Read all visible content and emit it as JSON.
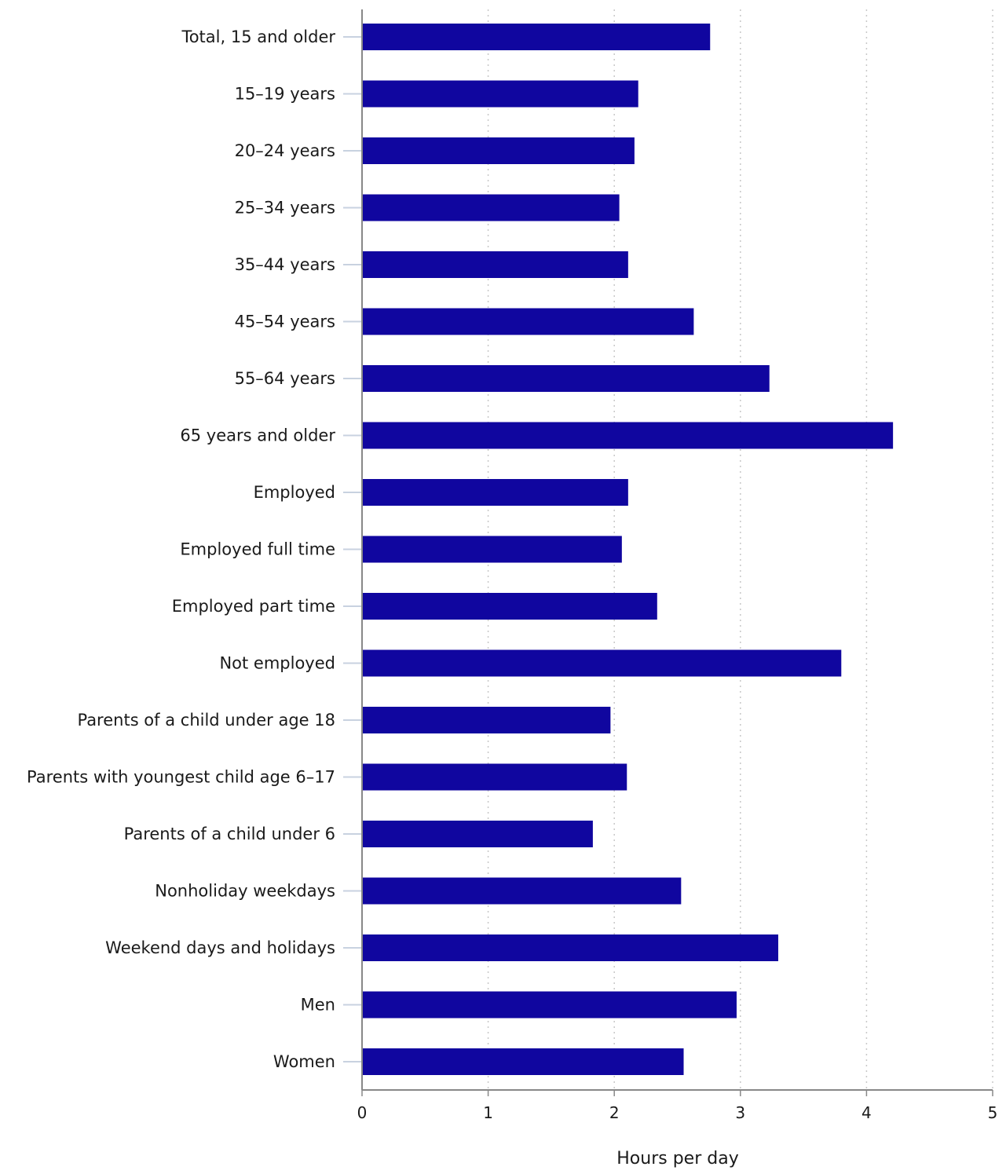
{
  "chart_data": {
    "type": "bar",
    "orientation": "horizontal",
    "categories": [
      "Total, 15 and older",
      "15–19 years",
      "20–24 years",
      "25–34 years",
      "35–44 years",
      "45–54 years",
      "55–64 years",
      "65 years and older",
      "Employed",
      "Employed full time",
      "Employed part time",
      "Not employed",
      "Parents of a child under age 18",
      "Parents with youngest child age 6–17",
      "Parents of a child under 6",
      "Nonholiday weekdays",
      "Weekend days and holidays",
      "Men",
      "Women"
    ],
    "values": [
      2.76,
      2.19,
      2.16,
      2.04,
      2.11,
      2.63,
      3.23,
      4.21,
      2.11,
      2.06,
      2.34,
      3.8,
      1.97,
      2.1,
      1.83,
      2.53,
      3.3,
      2.97,
      2.55
    ],
    "xlabel": "Hours per day",
    "ylabel": "",
    "title": "",
    "xlim": [
      0,
      5
    ],
    "xticks": [
      "0",
      "1",
      "2",
      "3",
      "4",
      "5"
    ],
    "grid": "vertical dotted",
    "legend": "none",
    "bar_color": "#10069f"
  }
}
